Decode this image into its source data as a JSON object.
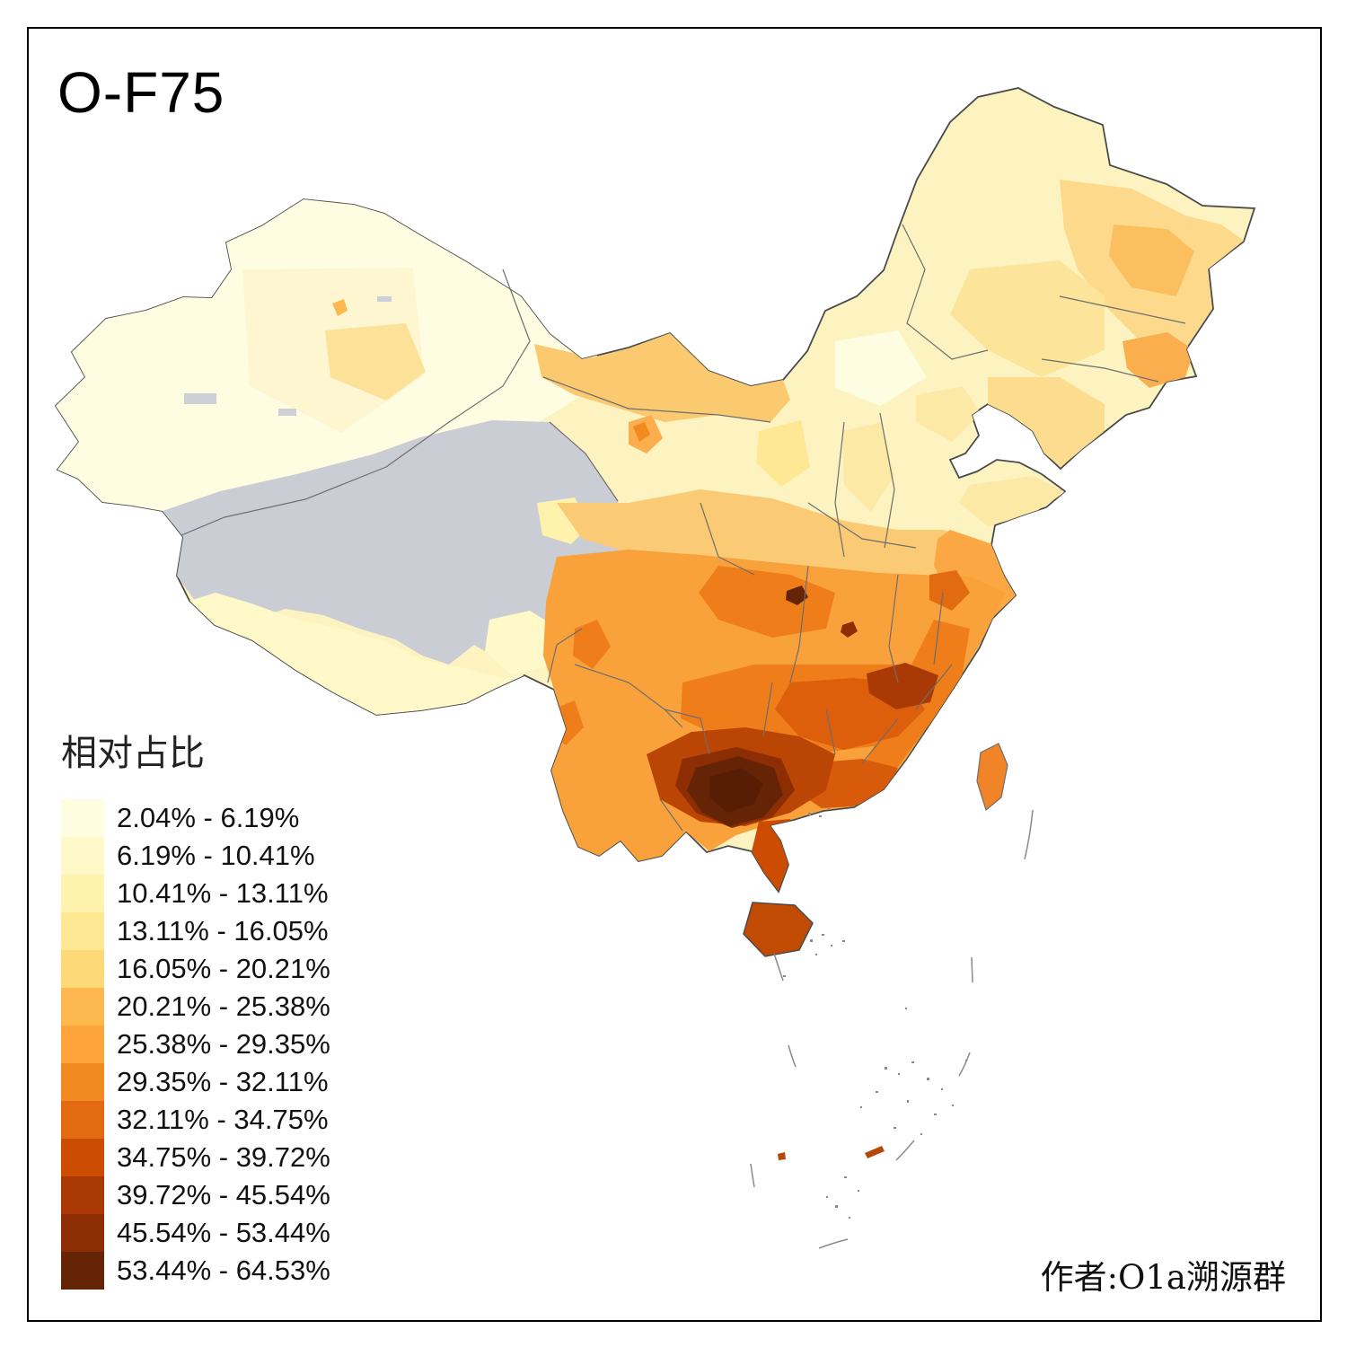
{
  "page": {
    "title": "O-F75",
    "attribution": "作者:O1a溯源群"
  },
  "legend": {
    "title": "相对占比",
    "bins": [
      {
        "label": "2.04% - 6.19%",
        "color": "#FEFCE1"
      },
      {
        "label": "6.19% - 10.41%",
        "color": "#FFF8C8"
      },
      {
        "label": "10.41% - 13.11%",
        "color": "#FEF2AD"
      },
      {
        "label": "13.11% - 16.05%",
        "color": "#FEE893"
      },
      {
        "label": "16.05% - 20.21%",
        "color": "#FED978"
      },
      {
        "label": "20.21% - 25.38%",
        "color": "#FDB94F"
      },
      {
        "label": "25.38% - 29.35%",
        "color": "#FDA53A"
      },
      {
        "label": "29.35% - 32.11%",
        "color": "#F28A22"
      },
      {
        "label": "32.11% - 34.75%",
        "color": "#E26A10"
      },
      {
        "label": "34.75% - 39.72%",
        "color": "#CC4C02"
      },
      {
        "label": "39.72% - 45.54%",
        "color": "#A93A05"
      },
      {
        "label": "45.54% - 53.44%",
        "color": "#8C2D04"
      },
      {
        "label": "53.44% - 64.53%",
        "color": "#652406"
      }
    ]
  },
  "map": {
    "type": "choropleth",
    "region": "China, prefecture-level divisions",
    "no_data_color": "#CBCDD5",
    "national_border_color": "#4A4A4A",
    "province_border_color": "#6E6E6E",
    "sea_color": "#FFFFFF",
    "hotspot": "Guangxi / western Guangdong (darkest values up to 64.53%)",
    "no_data_area": "Tibet, Qinghai and western Sichuan shown in gray"
  }
}
